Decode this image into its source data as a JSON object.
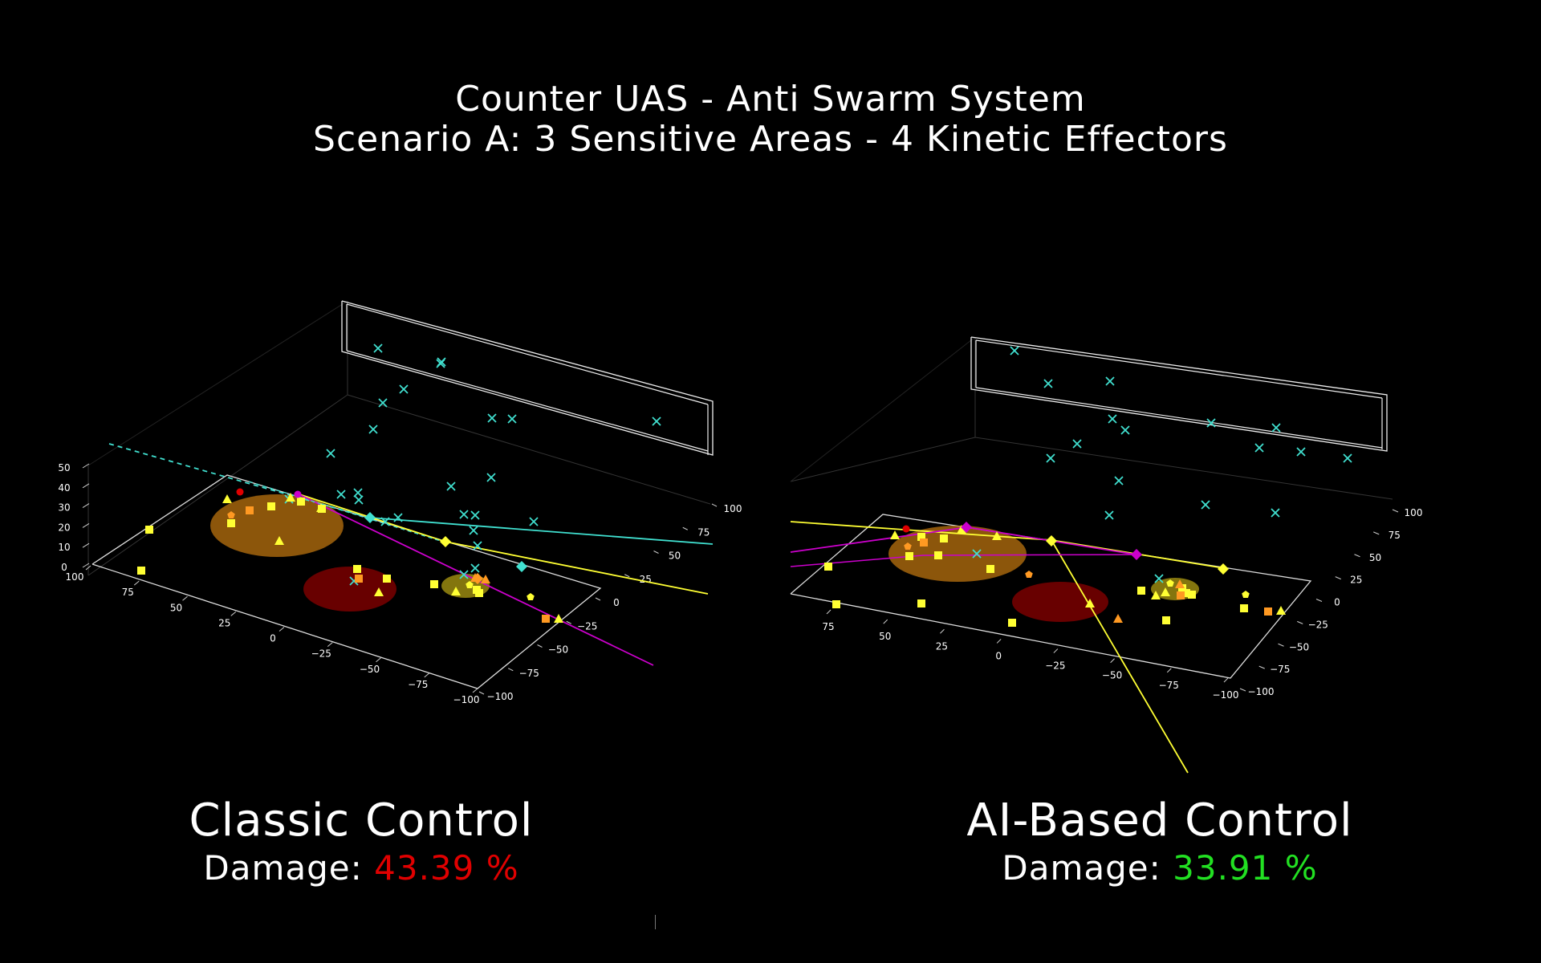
{
  "header": {
    "title_line1": "Counter UAS - Anti Swarm System",
    "title_line2": "Scenario A: 3 Sensitive Areas - 4 Kinetic Effectors"
  },
  "colors": {
    "drone_marker": "#40e0d0",
    "effector_yellow": "#ffff33",
    "effector_orange": "#ff9922",
    "effector_magenta": "#cc00cc",
    "damage_bad": "#e00000",
    "damage_good": "#22e022",
    "area_orange": "#c87a10",
    "area_red": "#7a0000",
    "area_yellow": "#9a8a10"
  },
  "panels": [
    {
      "name": "Classic Control",
      "damage_label": "Damage:",
      "damage_value": "43.39 %",
      "damage_color": "#e00000"
    },
    {
      "name": "AI-Based Control",
      "damage_label": "Damage:",
      "damage_value": "33.91 %",
      "damage_color": "#22e022"
    }
  ],
  "chart_data": [
    {
      "type": "scatter",
      "panel": "Classic Control",
      "axes": {
        "x_ticks": [
          "100",
          "75",
          "50",
          "25",
          "0",
          "−25",
          "−50",
          "−75",
          "−100"
        ],
        "y_ticks": [
          "−100",
          "−75",
          "−50",
          "−25",
          "0",
          "25",
          "50",
          "75",
          "100"
        ],
        "z_ticks": [
          "0",
          "10",
          "20",
          "30",
          "40",
          "50"
        ],
        "xlim": [
          -100,
          100
        ],
        "ylim": [
          -100,
          100
        ],
        "zlim": [
          0,
          50
        ]
      },
      "drones_x_markers": 26,
      "ground_markers": {
        "squares": 16,
        "triangles": 9,
        "pentagons": 3,
        "diamonds": 4
      },
      "sensitive_areas": 3,
      "effector_trajectories": 4
    },
    {
      "type": "scatter",
      "panel": "AI-Based Control",
      "axes": {
        "x_ticks": [
          "75",
          "50",
          "25",
          "0",
          "−25",
          "−50",
          "−75",
          "−100"
        ],
        "y_ticks": [
          "−100",
          "−75",
          "−50",
          "−25",
          "0",
          "25",
          "50",
          "75",
          "100"
        ],
        "xlim": [
          -100,
          100
        ],
        "ylim": [
          -100,
          100
        ]
      },
      "drones_x_markers": 20,
      "ground_markers": {
        "squares": 17,
        "triangles": 9,
        "pentagons": 4,
        "diamonds": 4
      },
      "sensitive_areas": 3,
      "effector_trajectories": 4
    }
  ]
}
